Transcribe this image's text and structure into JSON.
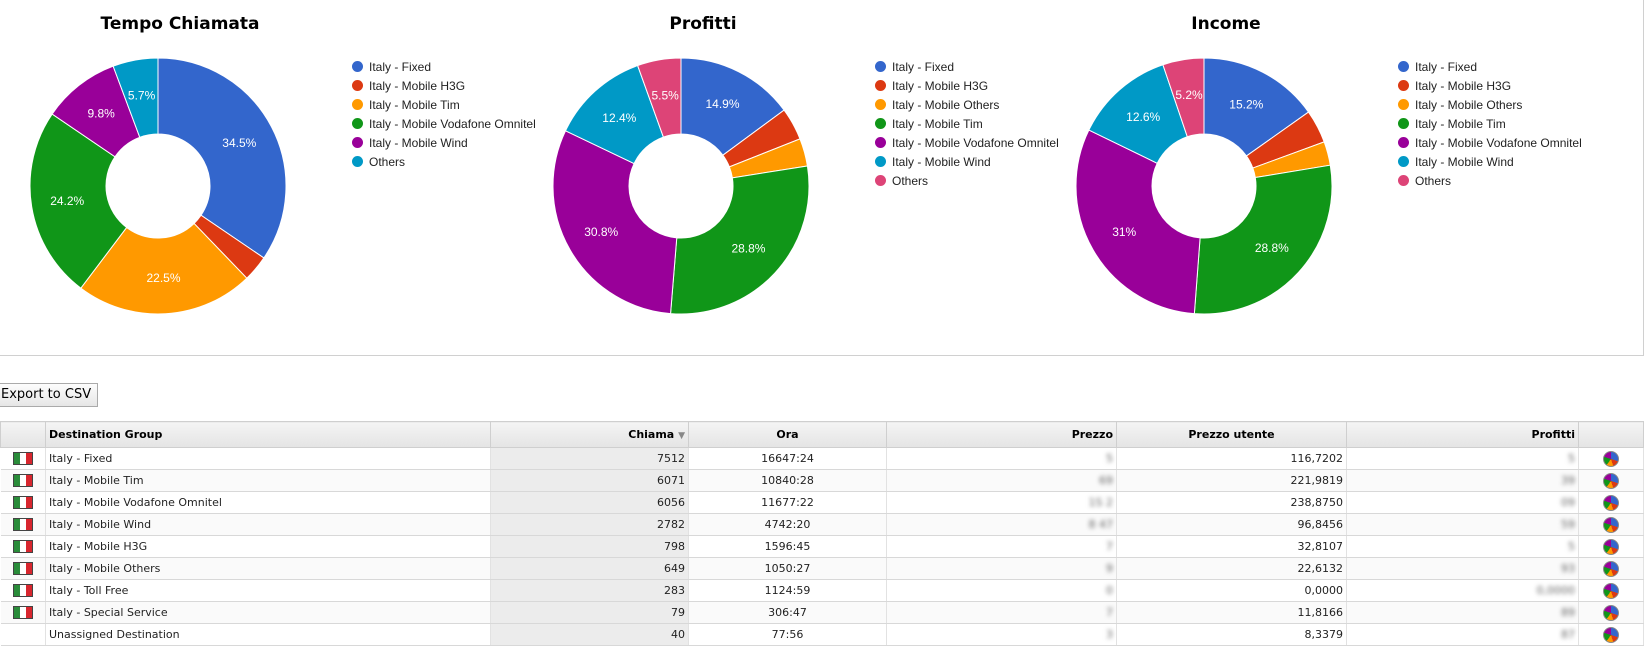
{
  "charts": [
    {
      "title": "Tempo Chiamata",
      "legend": [
        "Italy - Fixed",
        "Italy - Mobile H3G",
        "Italy - Mobile Tim",
        "Italy - Mobile Vodafone Omnitel",
        "Italy - Mobile Wind",
        "Others"
      ],
      "colors": [
        "#3366cc",
        "#dc3912",
        "#ff9900",
        "#109618",
        "#990099",
        "#0099c6"
      ],
      "values": [
        34.5,
        3.3,
        22.5,
        24.2,
        9.8,
        5.7
      ],
      "labels": [
        "34.5%",
        "",
        "22.5%",
        "24.2%",
        "9.8%",
        "5.7%"
      ]
    },
    {
      "title": "Profitti",
      "legend": [
        "Italy - Fixed",
        "Italy - Mobile H3G",
        "Italy - Mobile Others",
        "Italy - Mobile Tim",
        "Italy - Mobile Vodafone Omnitel",
        "Italy - Mobile Wind",
        "Others"
      ],
      "colors": [
        "#3366cc",
        "#dc3912",
        "#ff9900",
        "#109618",
        "#990099",
        "#0099c6",
        "#dd4477"
      ],
      "values": [
        14.9,
        4.1,
        3.5,
        28.8,
        30.8,
        12.4,
        5.5
      ],
      "labels": [
        "14.9%",
        "",
        "",
        "28.8%",
        "30.8%",
        "12.4%",
        "5.5%"
      ]
    },
    {
      "title": "Income",
      "legend": [
        "Italy - Fixed",
        "Italy - Mobile H3G",
        "Italy - Mobile Others",
        "Italy - Mobile Tim",
        "Italy - Mobile Vodafone Omnitel",
        "Italy - Mobile Wind",
        "Others"
      ],
      "colors": [
        "#3366cc",
        "#dc3912",
        "#ff9900",
        "#109618",
        "#990099",
        "#0099c6",
        "#dd4477"
      ],
      "values": [
        15.2,
        4.2,
        3.0,
        28.8,
        31.0,
        12.6,
        5.2
      ],
      "labels": [
        "15.2%",
        "",
        "",
        "28.8%",
        "31%",
        "12.6%",
        "5.2%"
      ]
    }
  ],
  "chart_data": [
    {
      "type": "pie",
      "title": "Tempo Chiamata",
      "categories": [
        "Italy - Fixed",
        "Italy - Mobile H3G",
        "Italy - Mobile Tim",
        "Italy - Mobile Vodafone Omnitel",
        "Italy - Mobile Wind",
        "Others"
      ],
      "values": [
        34.5,
        3.3,
        22.5,
        24.2,
        9.8,
        5.7
      ],
      "legend": "right"
    },
    {
      "type": "pie",
      "title": "Profitti",
      "categories": [
        "Italy - Fixed",
        "Italy - Mobile H3G",
        "Italy - Mobile Others",
        "Italy - Mobile Tim",
        "Italy - Mobile Vodafone Omnitel",
        "Italy - Mobile Wind",
        "Others"
      ],
      "values": [
        14.9,
        4.1,
        3.5,
        28.8,
        30.8,
        12.4,
        5.5
      ],
      "legend": "right"
    },
    {
      "type": "pie",
      "title": "Income",
      "categories": [
        "Italy - Fixed",
        "Italy - Mobile H3G",
        "Italy - Mobile Others",
        "Italy - Mobile Tim",
        "Italy - Mobile Vodafone Omnitel",
        "Italy - Mobile Wind",
        "Others"
      ],
      "values": [
        15.2,
        4.2,
        3.0,
        28.8,
        31.0,
        12.6,
        5.2
      ],
      "legend": "right"
    }
  ],
  "export_label": "Export to CSV",
  "table": {
    "headers": {
      "group": "Destination Group",
      "calls": "Chiama",
      "time": "Ora",
      "price": "Prezzo",
      "user_price": "Prezzo utente",
      "profit": "Profitti"
    },
    "sort_indicator": "▼",
    "rows": [
      {
        "flag": "italy-flag",
        "group": "Italy - Fixed",
        "calls": "7512",
        "time": "16647:24",
        "price": "5",
        "user_price": "116,7202",
        "profit": "5"
      },
      {
        "flag": "italy-flag",
        "group": "Italy - Mobile Tim",
        "calls": "6071",
        "time": "10840:28",
        "price": "69",
        "user_price": "221,9819",
        "profit": "39"
      },
      {
        "flag": "italy-flag",
        "group": "Italy - Mobile Vodafone Omnitel",
        "calls": "6056",
        "time": "11677:22",
        "price": "1S 2",
        "user_price": "238,8750",
        "profit": "09"
      },
      {
        "flag": "italy-flag",
        "group": "Italy - Mobile Wind",
        "calls": "2782",
        "time": "4742:20",
        "price": "8 47",
        "user_price": "96,8456",
        "profit": "59"
      },
      {
        "flag": "italy-flag",
        "group": "Italy - Mobile H3G",
        "calls": "798",
        "time": "1596:45",
        "price": "7",
        "user_price": "32,8107",
        "profit": "5"
      },
      {
        "flag": "italy-flag",
        "group": "Italy - Mobile Others",
        "calls": "649",
        "time": "1050:27",
        "price": "9",
        "user_price": "22,6132",
        "profit": "93"
      },
      {
        "flag": "italy-flag",
        "group": "Italy - Toll Free",
        "calls": "283",
        "time": "1124:59",
        "price": "0",
        "user_price": "0,0000",
        "profit": "0,0000"
      },
      {
        "flag": "italy-flag",
        "group": "Italy - Special Service",
        "calls": "79",
        "time": "306:47",
        "price": "7",
        "user_price": "11,8166",
        "profit": "89"
      },
      {
        "flag": "",
        "group": "Unassigned Destination",
        "calls": "40",
        "time": "77:56",
        "price": "3",
        "user_price": "8,3379",
        "profit": "87"
      }
    ]
  }
}
